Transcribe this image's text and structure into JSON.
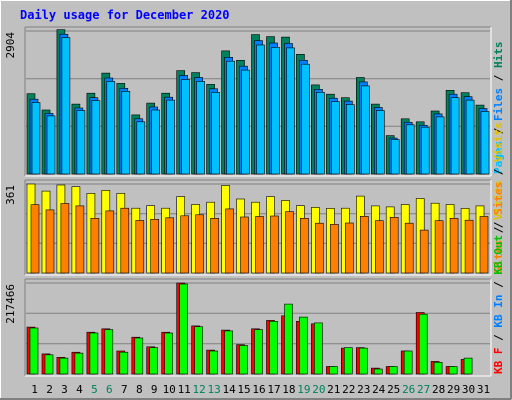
{
  "title": "Daily usage for December 2020",
  "colors": {
    "hits": "#00805c",
    "files": "#0080ff",
    "pages": "#00c0ff",
    "visits": "#ffff00",
    "sites": "#ff8000",
    "kb_f": "#ff0000",
    "kb_in": "#00c000",
    "kb_out": "#00ff00",
    "title": "#0000ff",
    "weekend": "#00805c"
  },
  "legends": {
    "hits_panel": [
      {
        "text": "Pages",
        "color": "#00c0ff"
      },
      {
        "text": " / ",
        "color": "#000000"
      },
      {
        "text": "Files",
        "color": "#0080ff"
      },
      {
        "text": " / ",
        "color": "#000000"
      },
      {
        "text": "Hits",
        "color": "#00805c"
      }
    ],
    "visits_panel": [
      {
        "text": "Sites",
        "color": "#ff8000"
      },
      {
        "text": " / ",
        "color": "#000000"
      },
      {
        "text": "Visits",
        "color": "#e0c000"
      }
    ],
    "kb_panel": [
      {
        "text": "KB F",
        "color": "#ff0000"
      },
      {
        "text": " / ",
        "color": "#000000"
      },
      {
        "text": "KB In",
        "color": "#0080ff"
      },
      {
        "text": " / ",
        "color": "#000000"
      },
      {
        "text": "KB Out",
        "color": "#00c000"
      },
      {
        "text": " / ",
        "color": "#000000"
      },
      {
        "text": "Sites",
        "color": "#ff8000"
      },
      {
        "text": " / ",
        "color": "#000000"
      },
      {
        "text": "Visits",
        "color": "#e0c000"
      }
    ]
  },
  "chart_data": [
    {
      "type": "bar",
      "name": "hits-panel",
      "max_label": "2904",
      "ylim": [
        0,
        2904
      ],
      "grid": true,
      "categories": [
        "1",
        "2",
        "3",
        "4",
        "5",
        "6",
        "7",
        "8",
        "9",
        "10",
        "11",
        "12",
        "13",
        "14",
        "15",
        "16",
        "17",
        "18",
        "19",
        "20",
        "21",
        "22",
        "23",
        "24",
        "25",
        "26",
        "27",
        "28",
        "29",
        "30",
        "31"
      ],
      "series": [
        {
          "name": "Hits",
          "values": [
            1630,
            1300,
            2930,
            1420,
            1640,
            2050,
            1840,
            1200,
            1440,
            1640,
            2100,
            2060,
            1820,
            2500,
            2310,
            2830,
            2790,
            2780,
            2430,
            1810,
            1620,
            1550,
            1960,
            1420,
            780,
            1120,
            1060,
            1280,
            1700,
            1650,
            1400
          ]
        },
        {
          "name": "Files",
          "values": [
            1520,
            1230,
            2840,
            1340,
            1550,
            1950,
            1740,
            1120,
            1360,
            1560,
            2000,
            1960,
            1730,
            2370,
            2190,
            2710,
            2660,
            2650,
            2310,
            1720,
            1540,
            1480,
            1870,
            1350,
            730,
            1050,
            990,
            1220,
            1620,
            1570,
            1330
          ]
        },
        {
          "name": "Pages",
          "values": [
            1450,
            1180,
            2770,
            1290,
            1490,
            1880,
            1680,
            1060,
            1300,
            1500,
            1920,
            1880,
            1660,
            2290,
            2110,
            2620,
            2570,
            2560,
            2230,
            1660,
            1470,
            1410,
            1790,
            1290,
            700,
            1000,
            950,
            1160,
            1550,
            1500,
            1270
          ]
        }
      ]
    },
    {
      "type": "bar",
      "name": "visits-panel",
      "max_label": "361",
      "ylim": [
        0,
        361
      ],
      "grid": true,
      "categories": [
        "1",
        "2",
        "3",
        "4",
        "5",
        "6",
        "7",
        "8",
        "9",
        "10",
        "11",
        "12",
        "13",
        "14",
        "15",
        "16",
        "17",
        "18",
        "19",
        "20",
        "21",
        "22",
        "23",
        "24",
        "25",
        "26",
        "27",
        "28",
        "29",
        "30",
        "31"
      ],
      "series": [
        {
          "name": "Visits",
          "values": [
            361,
            332,
            357,
            350,
            323,
            335,
            323,
            263,
            273,
            263,
            310,
            278,
            287,
            355,
            300,
            287,
            310,
            294,
            273,
            266,
            262,
            263,
            312,
            272,
            268,
            278,
            302,
            283,
            278,
            262,
            272
          ]
        },
        {
          "name": "Sites",
          "values": [
            277,
            256,
            282,
            272,
            222,
            252,
            263,
            213,
            218,
            224,
            232,
            236,
            222,
            260,
            227,
            229,
            231,
            249,
            222,
            202,
            197,
            203,
            230,
            212,
            226,
            202,
            174,
            212,
            222,
            214,
            229
          ]
        }
      ]
    },
    {
      "type": "bar",
      "name": "kb-panel",
      "max_label": "217466",
      "ylim": [
        0,
        217466
      ],
      "grid": true,
      "categories": [
        "1",
        "2",
        "3",
        "4",
        "5",
        "6",
        "7",
        "8",
        "9",
        "10",
        "11",
        "12",
        "13",
        "14",
        "15",
        "16",
        "17",
        "18",
        "19",
        "20",
        "21",
        "22",
        "23",
        "24",
        "25",
        "26",
        "27",
        "28",
        "29",
        "30",
        "31"
      ],
      "series": [
        {
          "name": "KB F",
          "values": [
            112000,
            48000,
            40000,
            52000,
            100000,
            108000,
            55000,
            88000,
            65000,
            100000,
            217466,
            115000,
            57000,
            105000,
            70000,
            108000,
            128000,
            139000,
            126000,
            120000,
            18000,
            62000,
            63000,
            14000,
            18000,
            55000,
            147000,
            30000,
            18000,
            35000,
            0
          ]
        },
        {
          "name": "KB Out",
          "values": [
            110000,
            46000,
            38000,
            50000,
            98000,
            106000,
            52000,
            86000,
            63000,
            98000,
            215000,
            113000,
            55000,
            103000,
            68000,
            106000,
            126000,
            167000,
            136000,
            122000,
            18000,
            63000,
            62000,
            12000,
            18000,
            55000,
            143000,
            28000,
            18000,
            38000,
            0
          ]
        }
      ]
    }
  ],
  "weekend_days": [
    5,
    6,
    12,
    13,
    19,
    20,
    26,
    27
  ]
}
